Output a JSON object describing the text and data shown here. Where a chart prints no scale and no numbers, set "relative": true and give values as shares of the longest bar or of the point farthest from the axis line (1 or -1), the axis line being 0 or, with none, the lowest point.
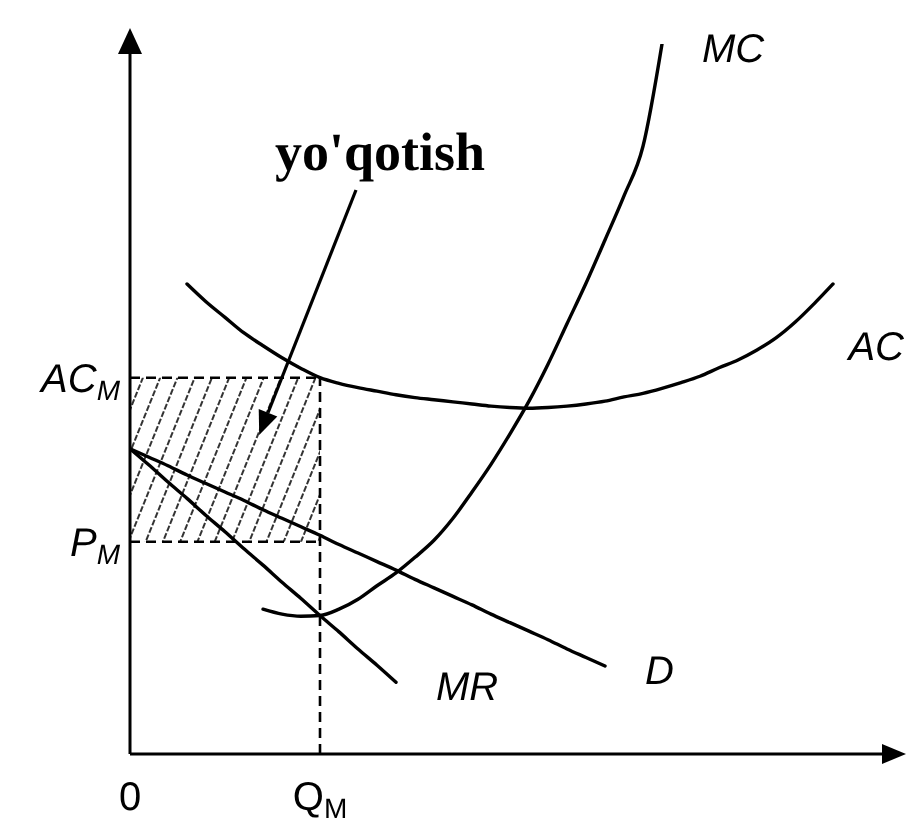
{
  "chart_data": {
    "type": "line",
    "relative": true,
    "categories": [
      "0",
      null,
      null,
      null,
      null,
      null,
      null,
      null,
      null,
      null,
      "Q$_{M}$",
      null,
      null,
      null,
      null,
      null,
      null,
      null,
      null,
      null,
      null,
      null,
      null,
      null,
      null,
      null,
      null,
      null,
      null,
      null,
      null,
      null,
      null,
      null,
      null,
      null,
      null,
      null,
      null,
      null,
      null
    ],
    "series": [
      {
        "name": "MC",
        "color": "#000000",
        "values": [
          null,
          null,
          null,
          null,
          null,
          null,
          null,
          0.204,
          0.197,
          0.194,
          0.195,
          0.204,
          0.218,
          0.237,
          0.255,
          0.277,
          0.301,
          0.332,
          0.369,
          0.408,
          0.451,
          0.497,
          0.549,
          0.606,
          0.663,
          0.724,
          0.786,
          0.856,
          1,
          null,
          null,
          null,
          null,
          null,
          null,
          null,
          null,
          null,
          null,
          null,
          null
        ]
      },
      {
        "name": "AC",
        "color": "#000000",
        "values": [
          null,
          null,
          null,
          0.662,
          0.637,
          0.615,
          0.593,
          0.575,
          0.558,
          0.543,
          0.53,
          0.522,
          0.516,
          0.511,
          0.506,
          0.502,
          0.499,
          0.496,
          0.493,
          0.49,
          0.488,
          0.487,
          0.488,
          0.49,
          0.493,
          0.497,
          0.503,
          0.508,
          0.515,
          0.523,
          0.532,
          0.544,
          0.555,
          0.569,
          0.586,
          0.608,
          0.634,
          0.662,
          null,
          null,
          null
        ]
      },
      {
        "name": "D",
        "color": "#000000",
        "values": [
          0.43,
          0.418,
          0.406,
          0.393,
          0.381,
          0.369,
          0.357,
          0.344,
          0.332,
          0.32,
          0.308,
          0.295,
          0.283,
          0.271,
          0.259,
          0.246,
          0.234,
          0.222,
          0.21,
          0.197,
          0.185,
          0.173,
          0.161,
          0.148,
          0.136,
          0.124,
          null,
          null,
          null,
          null,
          null,
          null,
          null,
          null,
          null,
          null,
          null,
          null,
          null,
          null,
          null
        ]
      },
      {
        "name": "MR",
        "color": "#000000",
        "values": [
          0.43,
          0.407,
          0.383,
          0.36,
          0.336,
          0.313,
          0.289,
          0.266,
          0.242,
          0.219,
          0.195,
          0.172,
          0.148,
          0.125,
          0.101,
          null,
          null,
          null,
          null,
          null,
          null,
          null,
          null,
          null,
          null,
          null,
          null,
          null,
          null,
          null,
          null,
          null,
          null,
          null,
          null,
          null,
          null,
          null,
          null,
          null,
          null
        ]
      }
    ],
    "ref_lines": [
      {
        "axis": "y",
        "value": 0.53,
        "label": "AC$_{M}$",
        "line_style": "dashed",
        "color": "#000000"
      },
      {
        "axis": "y",
        "value": 0.299,
        "label": "P$_{M}$",
        "line_style": "dashed",
        "color": "#000000"
      },
      {
        "axis": "x",
        "value": "Q$_{M}$",
        "line_style": "dashed",
        "color": "#000000"
      }
    ],
    "bands": [
      {
        "axis": "y",
        "from": 0.299,
        "to": 0.53,
        "color": "#333333"
      }
    ],
    "annotations": [
      "yo'qotish"
    ]
  }
}
